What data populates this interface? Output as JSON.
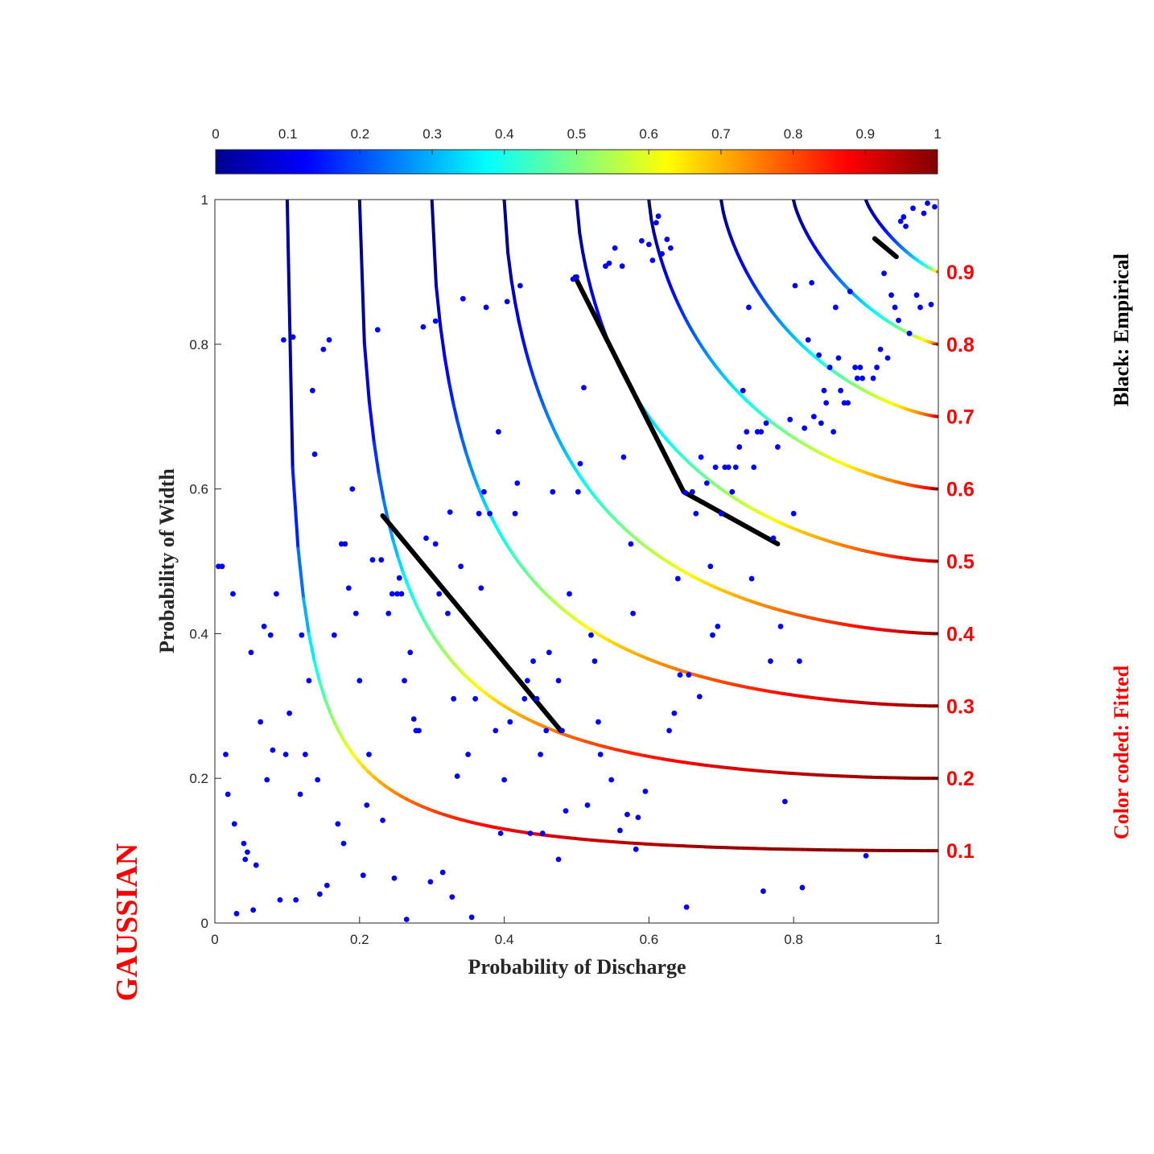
{
  "chart_data": {
    "type": "scatter",
    "xlabel": "Probability of Discharge",
    "ylabel": "Probability of Width",
    "xlim": [
      0,
      1
    ],
    "ylim": [
      0,
      1
    ],
    "xticks": [
      "0",
      "0.2",
      "0.4",
      "0.6",
      "0.8",
      "1"
    ],
    "yticks": [
      "0",
      "0.2",
      "0.4",
      "0.6",
      "0.8",
      "1"
    ],
    "colorbar": {
      "ticks": [
        "0",
        "0.1",
        "0.2",
        "0.3",
        "0.4",
        "0.5",
        "0.6",
        "0.7",
        "0.8",
        "0.9",
        "1"
      ],
      "colormap": "jet",
      "range": [
        0,
        1
      ]
    },
    "contour_levels": [
      "0.1",
      "0.2",
      "0.3",
      "0.4",
      "0.5",
      "0.6",
      "0.7",
      "0.8",
      "0.9"
    ],
    "contour_level_values": [
      0.1,
      0.2,
      0.3,
      0.4,
      0.5,
      0.6,
      0.7,
      0.8,
      0.9
    ],
    "annotations": {
      "empirical": "Black: Empirical",
      "fitted": "Color coded: Fitted",
      "copula": "GAUSSIAN"
    },
    "empirical_lines": [
      [
        [
          0.232,
          0.563
        ],
        [
          0.478,
          0.266
        ]
      ],
      [
        [
          0.498,
          0.893
        ],
        [
          0.648,
          0.596
        ],
        [
          0.778,
          0.524
        ]
      ],
      [
        [
          0.912,
          0.946
        ],
        [
          0.942,
          0.921
        ]
      ]
    ],
    "points": [
      [
        0.005,
        0.493
      ],
      [
        0.01,
        0.493
      ],
      [
        0.015,
        0.233
      ],
      [
        0.018,
        0.178
      ],
      [
        0.025,
        0.455
      ],
      [
        0.027,
        0.137
      ],
      [
        0.03,
        0.013
      ],
      [
        0.04,
        0.11
      ],
      [
        0.042,
        0.088
      ],
      [
        0.045,
        0.098
      ],
      [
        0.05,
        0.374
      ],
      [
        0.053,
        0.018
      ],
      [
        0.057,
        0.08
      ],
      [
        0.063,
        0.278
      ],
      [
        0.068,
        0.41
      ],
      [
        0.072,
        0.198
      ],
      [
        0.077,
        0.398
      ],
      [
        0.08,
        0.239
      ],
      [
        0.085,
        0.455
      ],
      [
        0.09,
        0.032
      ],
      [
        0.095,
        0.806
      ],
      [
        0.098,
        0.233
      ],
      [
        0.103,
        0.29
      ],
      [
        0.108,
        0.81
      ],
      [
        0.112,
        0.032
      ],
      [
        0.118,
        0.178
      ],
      [
        0.12,
        0.398
      ],
      [
        0.125,
        0.233
      ],
      [
        0.13,
        0.335
      ],
      [
        0.135,
        0.736
      ],
      [
        0.138,
        0.648
      ],
      [
        0.142,
        0.198
      ],
      [
        0.145,
        0.04
      ],
      [
        0.15,
        0.793
      ],
      [
        0.155,
        0.052
      ],
      [
        0.158,
        0.806
      ],
      [
        0.165,
        0.398
      ],
      [
        0.17,
        0.137
      ],
      [
        0.175,
        0.524
      ],
      [
        0.178,
        0.11
      ],
      [
        0.18,
        0.524
      ],
      [
        0.185,
        0.463
      ],
      [
        0.19,
        0.6
      ],
      [
        0.195,
        0.428
      ],
      [
        0.2,
        0.335
      ],
      [
        0.205,
        0.066
      ],
      [
        0.21,
        0.163
      ],
      [
        0.213,
        0.233
      ],
      [
        0.218,
        0.502
      ],
      [
        0.225,
        0.82
      ],
      [
        0.23,
        0.502
      ],
      [
        0.232,
        0.142
      ],
      [
        0.24,
        0.428
      ],
      [
        0.245,
        0.455
      ],
      [
        0.248,
        0.062
      ],
      [
        0.252,
        0.455
      ],
      [
        0.255,
        0.477
      ],
      [
        0.258,
        0.455
      ],
      [
        0.262,
        0.335
      ],
      [
        0.265,
        0.005
      ],
      [
        0.27,
        0.374
      ],
      [
        0.275,
        0.282
      ],
      [
        0.278,
        0.266
      ],
      [
        0.282,
        0.266
      ],
      [
        0.288,
        0.824
      ],
      [
        0.292,
        0.532
      ],
      [
        0.298,
        0.057
      ],
      [
        0.305,
        0.832
      ],
      [
        0.305,
        0.524
      ],
      [
        0.31,
        0.455
      ],
      [
        0.315,
        0.07
      ],
      [
        0.322,
        0.428
      ],
      [
        0.325,
        0.568
      ],
      [
        0.328,
        0.036
      ],
      [
        0.33,
        0.31
      ],
      [
        0.335,
        0.203
      ],
      [
        0.34,
        0.493
      ],
      [
        0.343,
        0.863
      ],
      [
        0.35,
        0.233
      ],
      [
        0.355,
        0.008
      ],
      [
        0.36,
        0.31
      ],
      [
        0.365,
        0.566
      ],
      [
        0.368,
        0.463
      ],
      [
        0.372,
        0.596
      ],
      [
        0.375,
        0.851
      ],
      [
        0.38,
        0.566
      ],
      [
        0.388,
        0.266
      ],
      [
        0.392,
        0.679
      ],
      [
        0.395,
        0.124
      ],
      [
        0.4,
        0.198
      ],
      [
        0.404,
        0.859
      ],
      [
        0.408,
        0.278
      ],
      [
        0.415,
        0.566
      ],
      [
        0.418,
        0.608
      ],
      [
        0.422,
        0.881
      ],
      [
        0.428,
        0.31
      ],
      [
        0.432,
        0.335
      ],
      [
        0.436,
        0.124
      ],
      [
        0.44,
        0.362
      ],
      [
        0.445,
        0.31
      ],
      [
        0.45,
        0.233
      ],
      [
        0.453,
        0.124
      ],
      [
        0.458,
        0.266
      ],
      [
        0.462,
        0.374
      ],
      [
        0.467,
        0.596
      ],
      [
        0.475,
        0.088
      ],
      [
        0.475,
        0.335
      ],
      [
        0.48,
        0.266
      ],
      [
        0.485,
        0.155
      ],
      [
        0.49,
        0.455
      ],
      [
        0.495,
        0.89
      ],
      [
        0.5,
        0.893
      ],
      [
        0.502,
        0.596
      ],
      [
        0.505,
        0.635
      ],
      [
        0.51,
        0.74
      ],
      [
        0.515,
        0.163
      ],
      [
        0.52,
        0.398
      ],
      [
        0.525,
        0.362
      ],
      [
        0.53,
        0.278
      ],
      [
        0.533,
        0.233
      ],
      [
        0.54,
        0.908
      ],
      [
        0.545,
        0.912
      ],
      [
        0.548,
        0.198
      ],
      [
        0.553,
        0.933
      ],
      [
        0.56,
        0.128
      ],
      [
        0.563,
        0.908
      ],
      [
        0.565,
        0.644
      ],
      [
        0.57,
        0.15
      ],
      [
        0.575,
        0.524
      ],
      [
        0.578,
        0.428
      ],
      [
        0.582,
        0.102
      ],
      [
        0.585,
        0.146
      ],
      [
        0.59,
        0.943
      ],
      [
        0.595,
        0.182
      ],
      [
        0.6,
        0.938
      ],
      [
        0.605,
        0.916
      ],
      [
        0.61,
        0.968
      ],
      [
        0.613,
        0.977
      ],
      [
        0.618,
        0.925
      ],
      [
        0.625,
        0.945
      ],
      [
        0.628,
        0.266
      ],
      [
        0.63,
        0.933
      ],
      [
        0.635,
        0.29
      ],
      [
        0.64,
        0.476
      ],
      [
        0.643,
        0.343
      ],
      [
        0.65,
        0.595
      ],
      [
        0.652,
        0.022
      ],
      [
        0.655,
        0.343
      ],
      [
        0.66,
        0.596
      ],
      [
        0.665,
        0.566
      ],
      [
        0.67,
        0.313
      ],
      [
        0.672,
        0.644
      ],
      [
        0.68,
        0.608
      ],
      [
        0.685,
        0.493
      ],
      [
        0.688,
        0.398
      ],
      [
        0.692,
        0.63
      ],
      [
        0.695,
        0.41
      ],
      [
        0.7,
        0.566
      ],
      [
        0.705,
        0.63
      ],
      [
        0.71,
        0.63
      ],
      [
        0.715,
        0.596
      ],
      [
        0.72,
        0.63
      ],
      [
        0.725,
        0.658
      ],
      [
        0.73,
        0.736
      ],
      [
        0.735,
        0.679
      ],
      [
        0.738,
        0.851
      ],
      [
        0.742,
        0.476
      ],
      [
        0.745,
        0.63
      ],
      [
        0.75,
        0.679
      ],
      [
        0.755,
        0.679
      ],
      [
        0.758,
        0.044
      ],
      [
        0.762,
        0.691
      ],
      [
        0.768,
        0.362
      ],
      [
        0.772,
        0.532
      ],
      [
        0.778,
        0.658
      ],
      [
        0.782,
        0.41
      ],
      [
        0.788,
        0.168
      ],
      [
        0.795,
        0.696
      ],
      [
        0.8,
        0.566
      ],
      [
        0.802,
        0.881
      ],
      [
        0.808,
        0.362
      ],
      [
        0.812,
        0.049
      ],
      [
        0.815,
        0.684
      ],
      [
        0.82,
        0.806
      ],
      [
        0.825,
        0.885
      ],
      [
        0.828,
        0.7
      ],
      [
        0.835,
        0.785
      ],
      [
        0.838,
        0.691
      ],
      [
        0.842,
        0.736
      ],
      [
        0.845,
        0.719
      ],
      [
        0.85,
        0.768
      ],
      [
        0.855,
        0.679
      ],
      [
        0.858,
        0.851
      ],
      [
        0.862,
        0.781
      ],
      [
        0.865,
        0.736
      ],
      [
        0.87,
        0.719
      ],
      [
        0.875,
        0.719
      ],
      [
        0.878,
        0.873
      ],
      [
        0.885,
        0.768
      ],
      [
        0.888,
        0.753
      ],
      [
        0.892,
        0.768
      ],
      [
        0.895,
        0.753
      ],
      [
        0.9,
        0.093
      ],
      [
        0.91,
        0.753
      ],
      [
        0.915,
        0.768
      ],
      [
        0.92,
        0.793
      ],
      [
        0.925,
        0.898
      ],
      [
        0.93,
        0.781
      ],
      [
        0.935,
        0.868
      ],
      [
        0.94,
        0.851
      ],
      [
        0.945,
        0.833
      ],
      [
        0.948,
        0.97
      ],
      [
        0.952,
        0.976
      ],
      [
        0.955,
        0.963
      ],
      [
        0.96,
        0.815
      ],
      [
        0.965,
        0.988
      ],
      [
        0.97,
        0.868
      ],
      [
        0.975,
        0.851
      ],
      [
        0.98,
        0.981
      ],
      [
        0.985,
        0.995
      ],
      [
        0.99,
        0.855
      ],
      [
        0.995,
        0.99
      ]
    ]
  }
}
